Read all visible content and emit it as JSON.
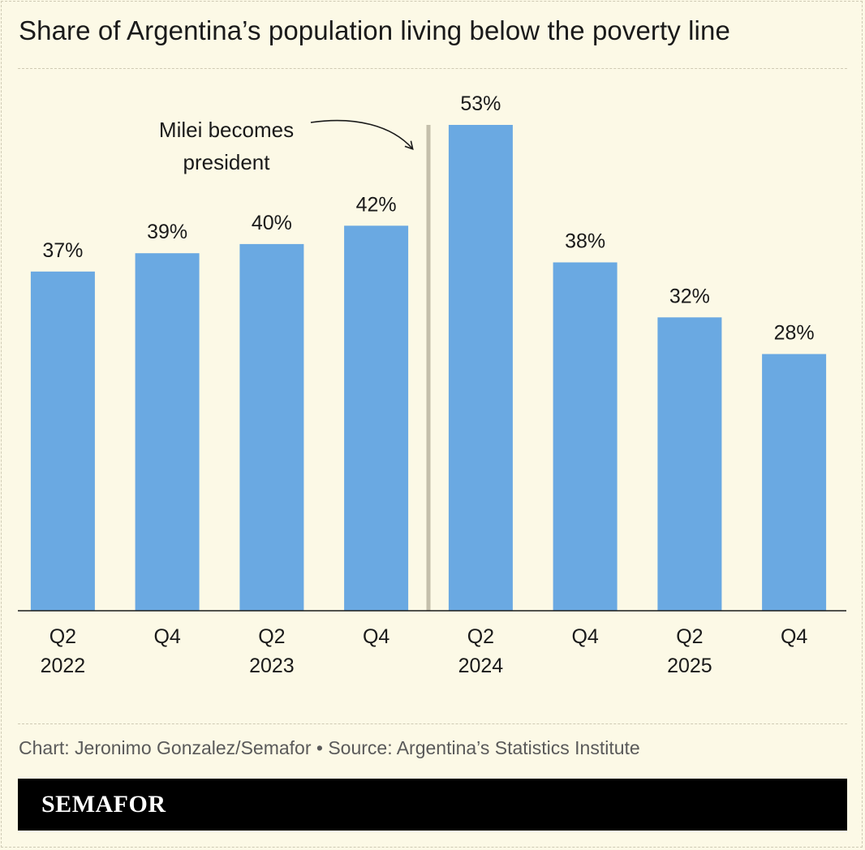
{
  "title": "Share of Argentina’s population living below the poverty line",
  "source": "Chart: Jeronimo Gonzalez/Semafor • Source: Argentina’s Statistics Institute",
  "brand": "SEMAFOR",
  "chart_data": {
    "type": "bar",
    "title": "Share of Argentina’s population living below the poverty line",
    "xlabel": "",
    "ylabel": "",
    "ylim": [
      0,
      53
    ],
    "grid": false,
    "categories": [
      {
        "quarter": "Q2",
        "year": "2022"
      },
      {
        "quarter": "Q4",
        "year": ""
      },
      {
        "quarter": "Q2",
        "year": "2023"
      },
      {
        "quarter": "Q4",
        "year": ""
      },
      {
        "quarter": "Q2",
        "year": "2024"
      },
      {
        "quarter": "Q4",
        "year": ""
      },
      {
        "quarter": "Q2",
        "year": "2025"
      },
      {
        "quarter": "Q4",
        "year": ""
      }
    ],
    "values": [
      37,
      39,
      40,
      42,
      53,
      38,
      32,
      28
    ],
    "data_labels": [
      "37%",
      "39%",
      "40%",
      "42%",
      "53%",
      "38%",
      "32%",
      "28%"
    ],
    "bar_color": "#6aa9e2",
    "annotation": {
      "lines": [
        "Milei becomes",
        "president"
      ],
      "between_index": 3
    }
  }
}
